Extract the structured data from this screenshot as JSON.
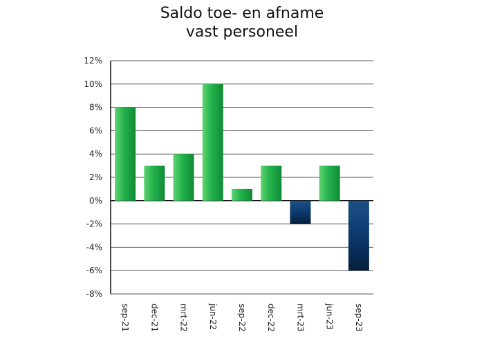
{
  "chart_data": {
    "type": "bar",
    "title_lines": [
      "Saldo toe- en afname",
      "vast personeel"
    ],
    "categories": [
      "sep-21",
      "dec-21",
      "mrt-22",
      "jun-22",
      "sep-22",
      "dec-22",
      "mrt-23",
      "jun-23",
      "sep-23"
    ],
    "values": [
      8,
      3,
      4,
      10,
      1,
      3,
      -2,
      3,
      -6
    ],
    "ylim": [
      -8,
      12
    ],
    "yticks": [
      12,
      10,
      8,
      6,
      4,
      2,
      0,
      -2,
      -4,
      -6,
      -8
    ],
    "ytick_labels": [
      "12%",
      "10%",
      "8%",
      "6%",
      "4%",
      "2%",
      "0%",
      "-2%",
      "-4%",
      "-6%",
      "-8%"
    ],
    "unit": "%",
    "grid": true,
    "legend": "none",
    "colors": {
      "positive_top": "#5fd46f",
      "positive_mid": "#22b14c",
      "positive_bottom": "#118a36",
      "negative_top": "#1d4f86",
      "negative_mid": "#0c3a6e",
      "negative_bottom": "#051f3d",
      "gridline": "#555555",
      "axis": "#111111"
    }
  }
}
